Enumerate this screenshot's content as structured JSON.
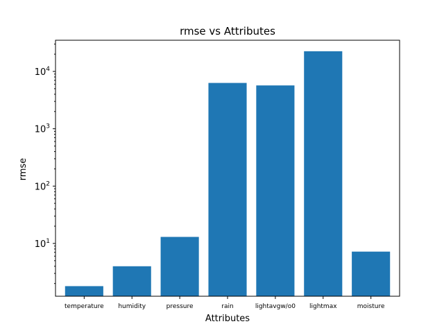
{
  "chart_data": {
    "type": "bar",
    "title": "rmse vs Attributes",
    "xlabel": "Attributes",
    "ylabel": "rmse",
    "yscale": "log",
    "ylim": [
      1.2,
      35000
    ],
    "categories": [
      "temperature",
      "humidity",
      "pressure",
      "rain",
      "lightavgw/o0",
      "lightmax",
      "moisture"
    ],
    "values": [
      1.8,
      4.0,
      13,
      6300,
      5700,
      22500,
      7.2
    ],
    "y_ticks": [
      {
        "base": "10",
        "exp": "1",
        "value": 10
      },
      {
        "base": "10",
        "exp": "2",
        "value": 100
      },
      {
        "base": "10",
        "exp": "3",
        "value": 1000
      },
      {
        "base": "10",
        "exp": "4",
        "value": 10000
      }
    ],
    "bar_color": "#1f77b4",
    "grid": false
  }
}
